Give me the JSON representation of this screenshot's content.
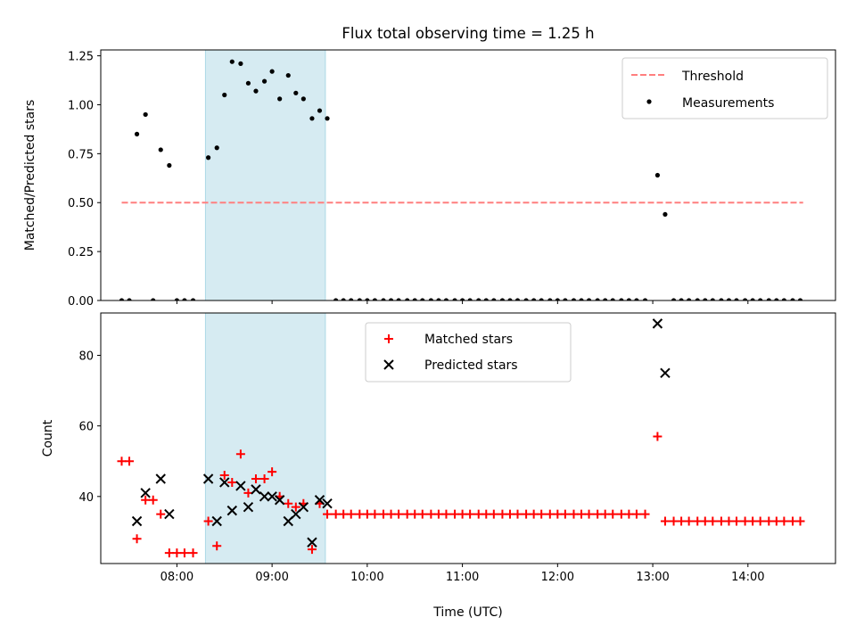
{
  "title": "Flux total observing time = 1.25 h",
  "colors": {
    "threshold": "#ff7f7f",
    "measurements": "#000000",
    "matched": "#ff0000",
    "predicted": "#000000",
    "span": "#add8e6"
  },
  "chart_data": [
    {
      "type": "scatter",
      "name": "ratio",
      "title": "Flux total observing time = 1.25 h",
      "xlabel": "",
      "ylabel": "Matched/Predicted stars",
      "xlim": [
        7.2,
        14.92
      ],
      "ylim": [
        0,
        1.28
      ],
      "yticks": [
        0,
        0.25,
        0.5,
        0.75,
        1.0,
        1.25
      ],
      "ytick_labels": [
        "0.00",
        "0.25",
        "0.50",
        "0.75",
        "1.00",
        "1.25"
      ],
      "xticks": [
        8,
        9,
        10,
        11,
        12,
        13,
        14
      ],
      "xtick_labels": [
        "08:00",
        "09:00",
        "10:00",
        "11:00",
        "12:00",
        "13:00",
        "14:00"
      ],
      "span": [
        8.3,
        9.56
      ],
      "threshold": {
        "value": 0.5,
        "x_range": [
          7.42,
          14.58
        ],
        "label": "Threshold"
      },
      "legend": {
        "position": "upper-right",
        "entries": [
          "Threshold",
          "Measurements"
        ]
      },
      "series": [
        {
          "name": "Measurements",
          "points": [
            [
              7.42,
              0
            ],
            [
              7.5,
              0
            ],
            [
              7.58,
              0.85
            ],
            [
              7.67,
              0.95
            ],
            [
              7.75,
              0
            ],
            [
              7.83,
              0.77
            ],
            [
              7.92,
              0.69
            ],
            [
              8.0,
              0
            ],
            [
              8.08,
              0
            ],
            [
              8.17,
              0
            ],
            [
              8.33,
              0.73
            ],
            [
              8.42,
              0.78
            ],
            [
              8.5,
              1.05
            ],
            [
              8.58,
              1.22
            ],
            [
              8.67,
              1.21
            ],
            [
              8.75,
              1.11
            ],
            [
              8.83,
              1.07
            ],
            [
              8.92,
              1.12
            ],
            [
              9.0,
              1.17
            ],
            [
              9.08,
              1.03
            ],
            [
              9.17,
              1.15
            ],
            [
              9.25,
              1.06
            ],
            [
              9.33,
              1.03
            ],
            [
              9.42,
              0.93
            ],
            [
              9.5,
              0.97
            ],
            [
              9.58,
              0.93
            ],
            [
              9.67,
              0
            ],
            [
              9.75,
              0
            ],
            [
              9.83,
              0
            ],
            [
              9.92,
              0
            ],
            [
              10.0,
              0
            ],
            [
              10.08,
              0
            ],
            [
              10.17,
              0
            ],
            [
              10.25,
              0
            ],
            [
              10.33,
              0
            ],
            [
              10.42,
              0
            ],
            [
              10.5,
              0
            ],
            [
              10.58,
              0
            ],
            [
              10.67,
              0
            ],
            [
              10.75,
              0
            ],
            [
              10.83,
              0
            ],
            [
              10.92,
              0
            ],
            [
              11.0,
              0
            ],
            [
              11.08,
              0
            ],
            [
              11.17,
              0
            ],
            [
              11.25,
              0
            ],
            [
              11.33,
              0
            ],
            [
              11.42,
              0
            ],
            [
              11.5,
              0
            ],
            [
              11.58,
              0
            ],
            [
              11.67,
              0
            ],
            [
              11.75,
              0
            ],
            [
              11.83,
              0
            ],
            [
              11.92,
              0
            ],
            [
              12.0,
              0
            ],
            [
              12.08,
              0
            ],
            [
              12.17,
              0
            ],
            [
              12.25,
              0
            ],
            [
              12.33,
              0
            ],
            [
              12.42,
              0
            ],
            [
              12.5,
              0
            ],
            [
              12.58,
              0
            ],
            [
              12.67,
              0
            ],
            [
              12.75,
              0
            ],
            [
              12.83,
              0
            ],
            [
              12.92,
              0
            ],
            [
              13.05,
              0.64
            ],
            [
              13.13,
              0.44
            ],
            [
              13.22,
              0
            ],
            [
              13.3,
              0
            ],
            [
              13.38,
              0
            ],
            [
              13.47,
              0
            ],
            [
              13.55,
              0
            ],
            [
              13.63,
              0
            ],
            [
              13.72,
              0
            ],
            [
              13.8,
              0
            ],
            [
              13.88,
              0
            ],
            [
              13.97,
              0
            ],
            [
              14.05,
              0
            ],
            [
              14.13,
              0
            ],
            [
              14.22,
              0
            ],
            [
              14.3,
              0
            ],
            [
              14.38,
              0
            ],
            [
              14.47,
              0
            ],
            [
              14.55,
              0
            ]
          ]
        }
      ]
    },
    {
      "type": "scatter",
      "name": "counts",
      "title": "",
      "xlabel": "Time (UTC)",
      "ylabel": "Count",
      "xlim": [
        7.2,
        14.92
      ],
      "ylim": [
        21,
        92
      ],
      "yticks": [
        40,
        60,
        80
      ],
      "ytick_labels": [
        "40",
        "60",
        "80"
      ],
      "xticks": [
        8,
        9,
        10,
        11,
        12,
        13,
        14
      ],
      "xtick_labels": [
        "08:00",
        "09:00",
        "10:00",
        "11:00",
        "12:00",
        "13:00",
        "14:00"
      ],
      "span": [
        8.3,
        9.56
      ],
      "legend": {
        "position": "upper-center",
        "entries": [
          "Matched stars",
          "Predicted stars"
        ]
      },
      "series": [
        {
          "name": "Matched stars",
          "marker": "plus",
          "points": [
            [
              7.42,
              50
            ],
            [
              7.5,
              50
            ],
            [
              7.58,
              28
            ],
            [
              7.67,
              39
            ],
            [
              7.75,
              39
            ],
            [
              7.83,
              35
            ],
            [
              7.92,
              24
            ],
            [
              8.0,
              24
            ],
            [
              8.08,
              24
            ],
            [
              8.17,
              24
            ],
            [
              8.33,
              33
            ],
            [
              8.42,
              26
            ],
            [
              8.5,
              46
            ],
            [
              8.58,
              44
            ],
            [
              8.67,
              52
            ],
            [
              8.75,
              41
            ],
            [
              8.83,
              45
            ],
            [
              8.92,
              45
            ],
            [
              9.0,
              47
            ],
            [
              9.08,
              40
            ],
            [
              9.17,
              38
            ],
            [
              9.25,
              37
            ],
            [
              9.33,
              38
            ],
            [
              9.42,
              25
            ],
            [
              9.5,
              38
            ],
            [
              9.58,
              35
            ],
            [
              9.67,
              35
            ],
            [
              9.75,
              35
            ],
            [
              9.83,
              35
            ],
            [
              9.92,
              35
            ],
            [
              10.0,
              35
            ],
            [
              10.08,
              35
            ],
            [
              10.17,
              35
            ],
            [
              10.25,
              35
            ],
            [
              10.33,
              35
            ],
            [
              10.42,
              35
            ],
            [
              10.5,
              35
            ],
            [
              10.58,
              35
            ],
            [
              10.67,
              35
            ],
            [
              10.75,
              35
            ],
            [
              10.83,
              35
            ],
            [
              10.92,
              35
            ],
            [
              11.0,
              35
            ],
            [
              11.08,
              35
            ],
            [
              11.17,
              35
            ],
            [
              11.25,
              35
            ],
            [
              11.33,
              35
            ],
            [
              11.42,
              35
            ],
            [
              11.5,
              35
            ],
            [
              11.58,
              35
            ],
            [
              11.67,
              35
            ],
            [
              11.75,
              35
            ],
            [
              11.83,
              35
            ],
            [
              11.92,
              35
            ],
            [
              12.0,
              35
            ],
            [
              12.08,
              35
            ],
            [
              12.17,
              35
            ],
            [
              12.25,
              35
            ],
            [
              12.33,
              35
            ],
            [
              12.42,
              35
            ],
            [
              12.5,
              35
            ],
            [
              12.58,
              35
            ],
            [
              12.67,
              35
            ],
            [
              12.75,
              35
            ],
            [
              12.83,
              35
            ],
            [
              12.92,
              35
            ],
            [
              13.05,
              57
            ],
            [
              13.13,
              33
            ],
            [
              13.22,
              33
            ],
            [
              13.3,
              33
            ],
            [
              13.38,
              33
            ],
            [
              13.47,
              33
            ],
            [
              13.55,
              33
            ],
            [
              13.63,
              33
            ],
            [
              13.72,
              33
            ],
            [
              13.8,
              33
            ],
            [
              13.88,
              33
            ],
            [
              13.97,
              33
            ],
            [
              14.05,
              33
            ],
            [
              14.13,
              33
            ],
            [
              14.22,
              33
            ],
            [
              14.3,
              33
            ],
            [
              14.38,
              33
            ],
            [
              14.47,
              33
            ],
            [
              14.55,
              33
            ]
          ]
        },
        {
          "name": "Predicted stars",
          "marker": "x",
          "points": [
            [
              7.58,
              33
            ],
            [
              7.67,
              41
            ],
            [
              7.83,
              45
            ],
            [
              7.92,
              35
            ],
            [
              8.33,
              45
            ],
            [
              8.42,
              33
            ],
            [
              8.5,
              44
            ],
            [
              8.58,
              36
            ],
            [
              8.67,
              43
            ],
            [
              8.75,
              37
            ],
            [
              8.83,
              42
            ],
            [
              8.92,
              40
            ],
            [
              9.0,
              40
            ],
            [
              9.08,
              39
            ],
            [
              9.17,
              33
            ],
            [
              9.25,
              35
            ],
            [
              9.33,
              37
            ],
            [
              9.42,
              27
            ],
            [
              9.5,
              39
            ],
            [
              9.58,
              38
            ],
            [
              13.05,
              89
            ],
            [
              13.13,
              75
            ]
          ]
        }
      ]
    }
  ]
}
